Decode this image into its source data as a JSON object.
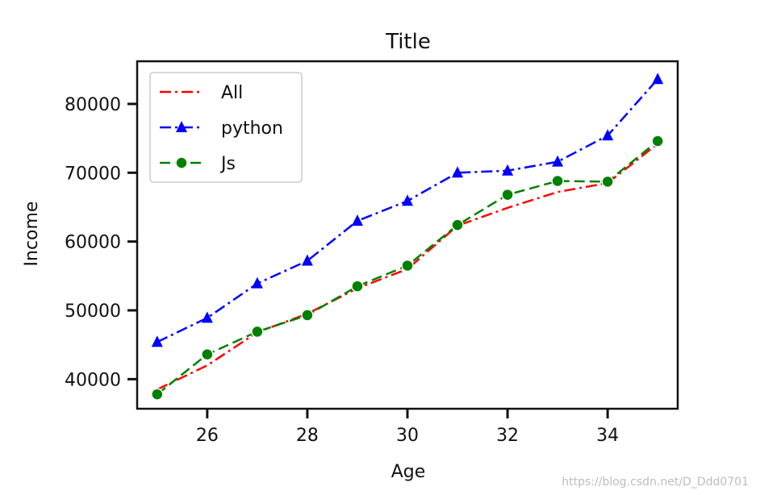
{
  "chart_data": {
    "type": "line",
    "title": "Title",
    "xlabel": "Age",
    "ylabel": "Income",
    "x": [
      25,
      26,
      27,
      28,
      29,
      30,
      31,
      32,
      33,
      34,
      35
    ],
    "xlim": [
      24.6,
      35.4
    ],
    "ylim": [
      35700,
      86200
    ],
    "xticks": [
      26,
      28,
      30,
      32,
      34
    ],
    "yticks": [
      40000,
      50000,
      60000,
      70000,
      80000
    ],
    "series": [
      {
        "name": "All",
        "values": [
          38500,
          42000,
          46800,
          49500,
          53200,
          56000,
          62300,
          64900,
          67200,
          68500,
          74200
        ],
        "color": "#ff0000",
        "marker": "none",
        "linestyle": "dash-dot"
      },
      {
        "name": "python",
        "values": [
          45400,
          48900,
          53900,
          57200,
          63000,
          65900,
          70000,
          70300,
          71600,
          75400,
          83600
        ],
        "color": "#0000ff",
        "marker": "triangle",
        "linestyle": "dash-dot"
      },
      {
        "name": "Js",
        "values": [
          37800,
          43600,
          46900,
          49300,
          53500,
          56500,
          62400,
          66800,
          68800,
          68700,
          74600
        ],
        "color": "#008000",
        "marker": "circle",
        "linestyle": "dash"
      }
    ],
    "legend": "top-left",
    "grid": false
  },
  "watermark": "https://blog.csdn.net/D_Ddd0701"
}
